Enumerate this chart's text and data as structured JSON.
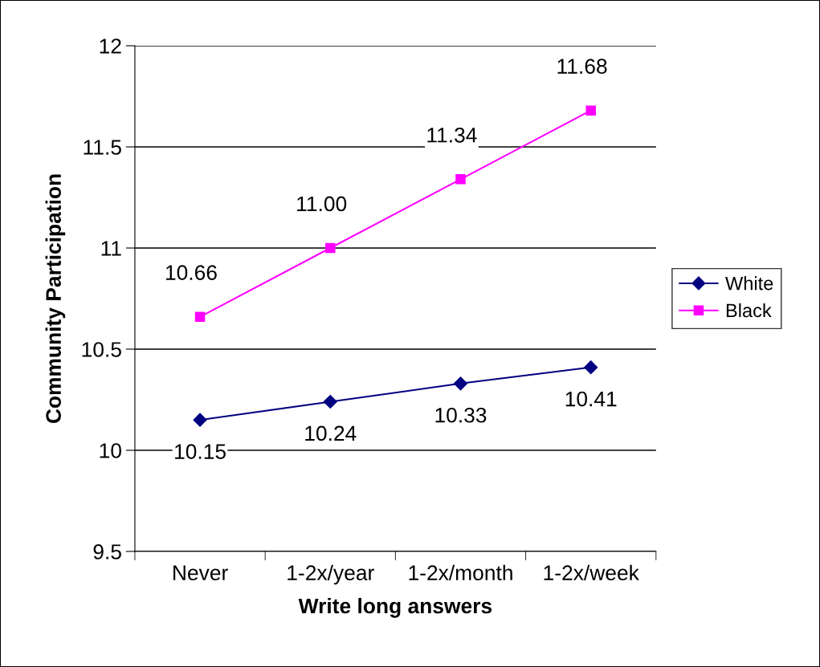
{
  "chart_data": {
    "type": "line",
    "xlabel": "Write long answers",
    "ylabel": "Community Participation",
    "categories": [
      "Never",
      "1-2x/year",
      "1-2x/month",
      "1-2x/week"
    ],
    "series": [
      {
        "name": "White",
        "color": "#000080",
        "marker": "diamond",
        "values": [
          10.15,
          10.24,
          10.33,
          10.41
        ],
        "value_labels": [
          "10.15",
          "10.24",
          "10.33",
          "10.41"
        ]
      },
      {
        "name": "Black",
        "color": "#ff00ff",
        "marker": "square",
        "values": [
          10.66,
          11.0,
          11.34,
          11.68
        ],
        "value_labels": [
          "10.66",
          "11.00",
          "11.34",
          "11.68"
        ]
      }
    ],
    "ylim": [
      9.5,
      12
    ],
    "yticks": [
      9.5,
      10,
      10.5,
      11,
      11.5,
      12
    ],
    "grid": "y",
    "legend": "right",
    "line_style": "solid"
  }
}
